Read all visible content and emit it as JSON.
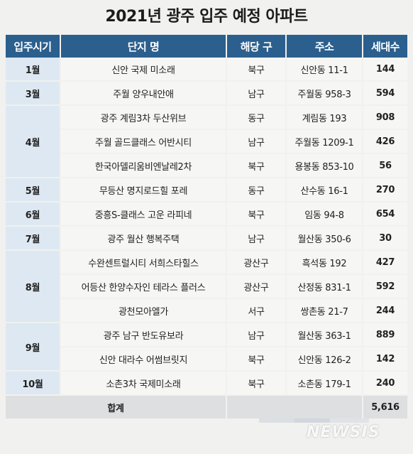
{
  "title": "2021년 광주 입주 예정 아파트",
  "headers": [
    "입주시기",
    "단지 명",
    "해당 구",
    "주소",
    "세대수"
  ],
  "rows": [
    {
      "month": "1월",
      "name": "신안 국제 미소래",
      "district": "북구",
      "addr": "신안동 11-1",
      "count": "144"
    },
    {
      "month": "3월",
      "name": "주월 양우내안애",
      "district": "남구",
      "addr": "주월동 958-3",
      "count": "594"
    },
    {
      "month": "4월",
      "name": "광주 계림3차 두산위브",
      "district": "동구",
      "addr": "계림동 193",
      "count": "908"
    },
    {
      "month": "",
      "name": "주월 골드클래스 어반시티",
      "district": "남구",
      "addr": "주월동 1209-1",
      "count": "426"
    },
    {
      "month": "",
      "name": "한국아델리움비엔날레2차",
      "district": "북구",
      "addr": "용봉동 853-10",
      "count": "56"
    },
    {
      "month": "5월",
      "name": "무등산 명지로드힐 포레",
      "district": "동구",
      "addr": "산수동 16-1",
      "count": "270"
    },
    {
      "month": "6월",
      "name": "중흥S-클래스 고운 라피네",
      "district": "북구",
      "addr": "임동 94-8",
      "count": "654"
    },
    {
      "month": "7월",
      "name": "광주 월산 행복주택",
      "district": "남구",
      "addr": "월산동 350-6",
      "count": "30"
    },
    {
      "month": "8월",
      "name": "수완센트럴시티 서희스타힐스",
      "district": "광산구",
      "addr": "흑석동 192",
      "count": "427"
    },
    {
      "month": "",
      "name": "어등산 한양수자인 테라스 플러스",
      "district": "광산구",
      "addr": "산정동 831-1",
      "count": "592"
    },
    {
      "month": "",
      "name": "광천모아엘가",
      "district": "서구",
      "addr": "쌍촌동 21-7",
      "count": "244"
    },
    {
      "month": "9월",
      "name": "광주 남구 반도유보라",
      "district": "남구",
      "addr": "월산동 363-1",
      "count": "889"
    },
    {
      "month": "",
      "name": "신안 대라수 어썸브릿지",
      "district": "북구",
      "addr": "신안동 126-2",
      "count": "142"
    },
    {
      "month": "10월",
      "name": "소촌3차 국제미소래",
      "district": "북구",
      "addr": "소촌동 179-1",
      "count": "240"
    }
  ],
  "total_label": "합계",
  "total_value": "5,616",
  "logo": "NEWSIS",
  "colors": {
    "header": "#2b5f8e",
    "month_cell": "#dde8f2",
    "total_value": "#d92b2b"
  }
}
